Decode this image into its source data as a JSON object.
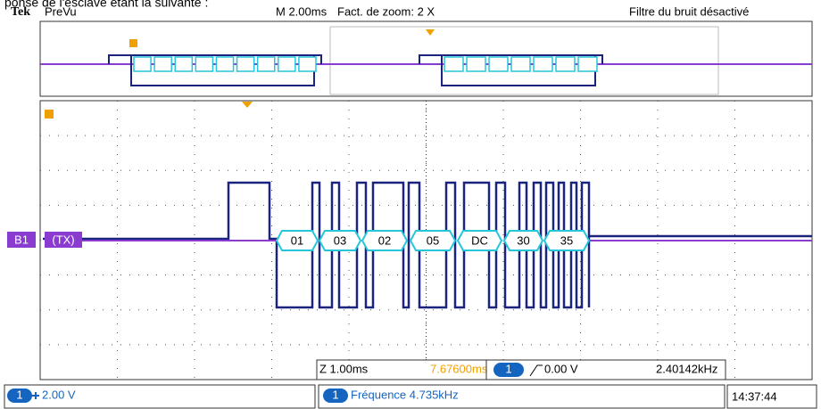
{
  "caption": "ponse de l'esclave étant la suivante :",
  "header": {
    "brand": "Tek",
    "mode": "PreVu",
    "timebase": "M 2.00ms",
    "zoom": "Fact. de zoom: 2 X",
    "filter": "Filtre du bruit désactivé"
  },
  "bus": {
    "label": "B1",
    "name": "(TX)",
    "bytes": [
      "01",
      "03",
      "02",
      "05",
      "DC",
      "30",
      "35"
    ]
  },
  "zoom_status": {
    "scale": "Z 1.00ms",
    "position": "7.67600ms",
    "channel": "1",
    "trigger": "0.00 V",
    "frequency": "2.40142kHz"
  },
  "footer": {
    "channel": "1",
    "scale": "2.00 V",
    "measure_channel": "1",
    "measurement": "Fréquence 4.735kHz",
    "time": "14:37:44"
  }
}
